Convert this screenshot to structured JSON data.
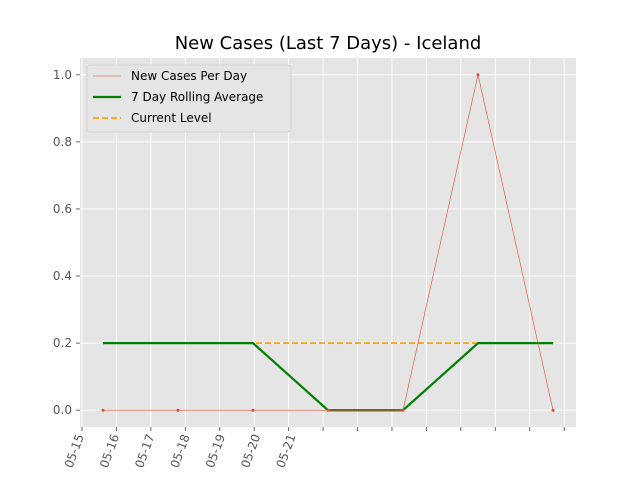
{
  "chart_data": {
    "type": "line",
    "title": "New Cases (Last 7 Days) - Iceland",
    "xlabel": "",
    "ylabel": "",
    "x": [
      "05-15",
      "05-16",
      "05-17",
      "05-18",
      "05-19",
      "05-20",
      "05-21"
    ],
    "x_tick_labels": [
      "05-15",
      "05-16",
      "05-17",
      "05-18",
      "05-19",
      "05-20",
      "05-21"
    ],
    "xlim": [
      "05-15",
      "05-22"
    ],
    "ylim": [
      -0.05,
      1.05
    ],
    "y_ticks": [
      0.0,
      0.2,
      0.4,
      0.6,
      0.8,
      1.0
    ],
    "y_tick_labels": [
      "0.0",
      "0.2",
      "0.4",
      "0.6",
      "0.8",
      "1.0"
    ],
    "grid": true,
    "legend_position": "top-left",
    "series": [
      {
        "name": "New Cases Per Day",
        "color": "#e24a33",
        "style": "thin-line-markers",
        "x": [
          "05-15",
          "05-16",
          "05-17",
          "05-18",
          "05-19",
          "05-20",
          "05-21"
        ],
        "values": [
          0,
          0,
          0,
          0,
          0,
          1,
          0
        ]
      },
      {
        "name": "7 Day Rolling Average",
        "color": "#008000",
        "style": "thick-line",
        "x": [
          "05-15",
          "05-16",
          "05-17",
          "05-18",
          "05-19",
          "05-20",
          "05-21"
        ],
        "values": [
          0.2,
          0.2,
          0.2,
          0,
          0,
          0.2,
          0.2
        ]
      },
      {
        "name": "Current Level",
        "color": "#ffa500",
        "style": "dashed",
        "x": [
          "05-15",
          "05-21"
        ],
        "values": [
          0.2,
          0.2
        ]
      }
    ]
  }
}
